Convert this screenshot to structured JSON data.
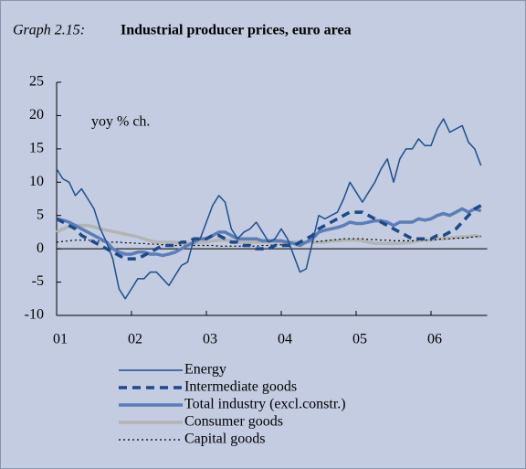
{
  "chart_data": {
    "type": "line",
    "graph_label": "Graph 2.15:",
    "title": "Industrial producer prices, euro area",
    "y_label": "yoy % ch.",
    "ylim": [
      -10,
      25
    ],
    "yticks": [
      -10,
      -5,
      0,
      5,
      10,
      15,
      20,
      25
    ],
    "grid": false,
    "legend": "bottom",
    "categories": [
      "01",
      null,
      null,
      null,
      null,
      null,
      null,
      null,
      null,
      null,
      null,
      null,
      "02",
      null,
      null,
      null,
      null,
      null,
      null,
      null,
      null,
      null,
      null,
      null,
      "03",
      null,
      null,
      null,
      null,
      null,
      null,
      null,
      null,
      null,
      null,
      null,
      "04",
      null,
      null,
      null,
      null,
      null,
      null,
      null,
      null,
      null,
      null,
      null,
      "05",
      null,
      null,
      null,
      null,
      null,
      null,
      null,
      null,
      null,
      null,
      null,
      "06",
      null,
      null,
      null,
      null,
      null,
      null,
      null,
      null
    ],
    "series": [
      {
        "name": "Energy",
        "color": "#1f4e8c",
        "style": "solid",
        "linewidth": 1.5,
        "values": [
          12,
          10.5,
          10,
          8,
          9,
          7.5,
          6,
          3,
          1,
          -1.5,
          -6,
          -7.5,
          -6,
          -4.5,
          -4.5,
          -3.5,
          -3.5,
          -4.5,
          -5.5,
          -4,
          -2.5,
          -2,
          1.5,
          1.5,
          4,
          6.5,
          8,
          7,
          3,
          1.5,
          2.5,
          3,
          4,
          2.5,
          1,
          1.5,
          3,
          1.5,
          -1,
          -3.5,
          -3,
          1,
          5,
          4.5,
          5,
          5.5,
          7.5,
          10,
          8.5,
          7,
          8.5,
          10,
          12,
          13.5,
          10,
          13.5,
          15,
          15,
          16.5,
          15.5,
          15.5,
          18,
          19.5,
          17.5,
          18,
          18.5,
          16,
          15,
          12.5
        ]
      },
      {
        "name": "Intermediate goods",
        "color": "#1a4a8a",
        "style": "dashed",
        "linewidth": 3.5,
        "values": [
          4.5,
          4,
          3.5,
          3,
          2,
          1.5,
          1,
          0.5,
          0,
          -0.5,
          -1,
          -1.5,
          -1.5,
          -1.5,
          -1,
          -0.5,
          0,
          0.5,
          0.5,
          0.5,
          1,
          1,
          1.5,
          1.5,
          1.5,
          2,
          2,
          1.5,
          1,
          1,
          0.5,
          0.5,
          0,
          0,
          0,
          0.5,
          0.5,
          0.5,
          0.5,
          1,
          1.5,
          2,
          3,
          3.5,
          4,
          4.5,
          5,
          5.5,
          5.5,
          5.5,
          5,
          4.5,
          4,
          3.5,
          3,
          2.5,
          2,
          1.5,
          1.5,
          1.5,
          1.5,
          2,
          2,
          2.5,
          3,
          4,
          5,
          6,
          6.5
        ]
      },
      {
        "name": "Total industry (excl.constr.)",
        "color": "#5b7db8",
        "style": "solid",
        "linewidth": 3.5,
        "values": [
          4.5,
          4.3,
          4,
          3.5,
          3,
          2.5,
          2,
          1.5,
          1,
          0,
          -0.5,
          -0.8,
          -0.8,
          -0.5,
          -0.5,
          -0.8,
          -0.8,
          -1,
          -0.8,
          -0.5,
          0,
          0.5,
          1,
          1.5,
          1.5,
          2,
          2.5,
          2.5,
          2,
          1.5,
          1.5,
          1.5,
          1.5,
          1.2,
          1.2,
          1.2,
          1.2,
          1,
          0.8,
          0.5,
          1,
          1.5,
          2.5,
          2.8,
          3,
          3.2,
          3.5,
          4,
          3.8,
          3.8,
          4,
          4.2,
          4.2,
          4,
          3.5,
          4,
          4,
          4,
          4.5,
          4.3,
          4.5,
          5,
          5.3,
          5,
          5.5,
          6,
          5.5,
          6,
          5.7
        ]
      },
      {
        "name": "Consumer goods",
        "color": "#b4b4b4",
        "style": "solid",
        "linewidth": 3.5,
        "values": [
          2.5,
          3,
          3.3,
          3.5,
          3.5,
          3.5,
          3.3,
          3,
          2.8,
          2.6,
          2.4,
          2.2,
          2,
          1.8,
          1.5,
          1.2,
          1,
          1,
          1,
          1,
          0.8,
          0.8,
          0.8,
          1,
          1,
          1.2,
          1.3,
          1.3,
          1.2,
          1,
          1,
          1,
          1,
          1,
          1,
          1,
          1,
          1,
          1,
          1,
          1,
          1,
          1,
          1,
          1.2,
          1.2,
          1.3,
          1.3,
          1.3,
          1.2,
          1,
          0.8,
          0.8,
          0.8,
          0.8,
          0.8,
          0.9,
          1,
          1.2,
          1.3,
          1.3,
          1.5,
          1.5,
          1.6,
          1.7,
          1.8,
          1.8,
          2,
          1.8
        ]
      },
      {
        "name": "Capital goods",
        "color": "#000000",
        "style": "dotted",
        "linewidth": 1.2,
        "values": [
          1,
          1.1,
          1.2,
          1.3,
          1.3,
          1.3,
          1.2,
          1.1,
          1,
          1,
          1,
          0.9,
          0.9,
          0.8,
          0.8,
          0.7,
          0.7,
          0.6,
          0.6,
          0.5,
          0.5,
          0.5,
          0.5,
          0.5,
          0.5,
          0.5,
          0.4,
          0.4,
          0.4,
          0.4,
          0.4,
          0.4,
          0.4,
          0.5,
          0.5,
          0.6,
          0.6,
          0.7,
          0.8,
          0.9,
          1,
          1,
          1.1,
          1.2,
          1.3,
          1.4,
          1.5,
          1.5,
          1.5,
          1.5,
          1.4,
          1.4,
          1.3,
          1.3,
          1.2,
          1.2,
          1.2,
          1.2,
          1.3,
          1.3,
          1.3,
          1.4,
          1.5,
          1.5,
          1.6,
          1.6,
          1.7,
          1.8,
          1.9
        ]
      }
    ]
  }
}
